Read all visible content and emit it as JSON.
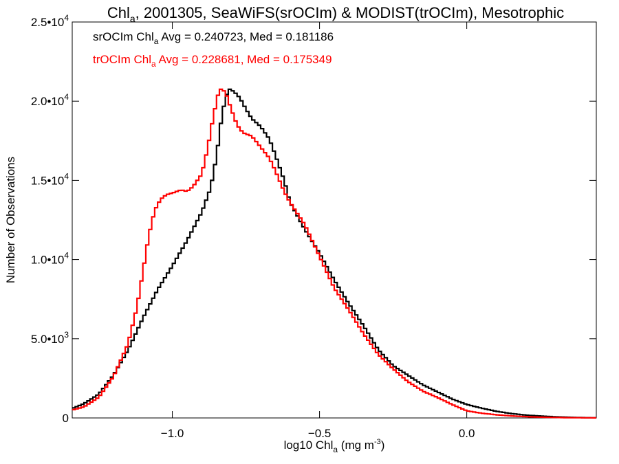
{
  "chart_data": {
    "type": "line",
    "title": {
      "pre": "Chl",
      "sub": "a",
      "post": ", 2001305, SeaWiFS(srOCIm) & MODIST(trOCIm), Mesotrophic"
    },
    "xlabel": {
      "pre": "log10 Chl",
      "sub": "a",
      "post": " (mg m",
      "sup": "-3",
      "end": ")"
    },
    "ylabel": "Number of Observations",
    "xlim": [
      -1.34,
      0.44
    ],
    "ylim": [
      0,
      25000
    ],
    "x_ticks": [
      {
        "value": -1.0,
        "label": "−1.0"
      },
      {
        "value": -0.5,
        "label": "−0.5"
      },
      {
        "value": 0.0,
        "label": "0.0"
      }
    ],
    "y_ticks": [
      {
        "value": 0,
        "mant": "0",
        "exp": ""
      },
      {
        "value": 5000,
        "mant": "5.0•10",
        "exp": "3"
      },
      {
        "value": 10000,
        "mant": "1.0•10",
        "exp": "4"
      },
      {
        "value": 15000,
        "mant": "1.5•10",
        "exp": "4"
      },
      {
        "value": 20000,
        "mant": "2.0•10",
        "exp": "4"
      },
      {
        "value": 25000,
        "mant": "2.5•10",
        "exp": "4"
      }
    ],
    "annotations": [
      {
        "pre": "srOCIm Chl",
        "sub": "a",
        "post": " Avg = 0.240723, Med = 0.181186",
        "color": "#000000"
      },
      {
        "pre": "trOCIm Chl",
        "sub": "a",
        "post": " Avg = 0.228681, Med = 0.175349",
        "color": "#ff0000"
      }
    ],
    "series": [
      {
        "color": "#000000",
        "points": [
          [
            -1.34,
            600
          ],
          [
            -1.3,
            900
          ],
          [
            -1.25,
            1500
          ],
          [
            -1.2,
            2700
          ],
          [
            -1.15,
            4300
          ],
          [
            -1.1,
            6300
          ],
          [
            -1.05,
            8100
          ],
          [
            -1.0,
            9600
          ],
          [
            -0.95,
            11200
          ],
          [
            -0.9,
            13000
          ],
          [
            -0.87,
            14500
          ],
          [
            -0.85,
            16500
          ],
          [
            -0.83,
            19300
          ],
          [
            -0.81,
            20800
          ],
          [
            -0.79,
            20600
          ],
          [
            -0.77,
            20200
          ],
          [
            -0.75,
            19500
          ],
          [
            -0.73,
            18900
          ],
          [
            -0.7,
            18400
          ],
          [
            -0.67,
            17600
          ],
          [
            -0.65,
            16600
          ],
          [
            -0.62,
            15000
          ],
          [
            -0.6,
            13600
          ],
          [
            -0.55,
            11900
          ],
          [
            -0.5,
            10400
          ],
          [
            -0.45,
            8700
          ],
          [
            -0.4,
            7200
          ],
          [
            -0.35,
            5800
          ],
          [
            -0.3,
            4300
          ],
          [
            -0.25,
            3300
          ],
          [
            -0.2,
            2700
          ],
          [
            -0.15,
            2100
          ],
          [
            -0.1,
            1650
          ],
          [
            -0.05,
            1200
          ],
          [
            0.0,
            850
          ],
          [
            0.05,
            620
          ],
          [
            0.1,
            420
          ],
          [
            0.15,
            280
          ],
          [
            0.2,
            180
          ],
          [
            0.25,
            120
          ],
          [
            0.3,
            70
          ],
          [
            0.35,
            40
          ],
          [
            0.4,
            20
          ],
          [
            0.44,
            10
          ]
        ]
      },
      {
        "color": "#ff0000",
        "points": [
          [
            -1.34,
            500
          ],
          [
            -1.3,
            700
          ],
          [
            -1.25,
            1300
          ],
          [
            -1.2,
            2600
          ],
          [
            -1.15,
            4700
          ],
          [
            -1.12,
            7000
          ],
          [
            -1.1,
            9200
          ],
          [
            -1.08,
            11500
          ],
          [
            -1.06,
            13100
          ],
          [
            -1.04,
            13800
          ],
          [
            -1.02,
            14100
          ],
          [
            -1.0,
            14200
          ],
          [
            -0.97,
            14400
          ],
          [
            -0.95,
            14300
          ],
          [
            -0.93,
            14600
          ],
          [
            -0.9,
            15400
          ],
          [
            -0.88,
            17000
          ],
          [
            -0.86,
            19100
          ],
          [
            -0.84,
            20800
          ],
          [
            -0.82,
            20600
          ],
          [
            -0.8,
            19500
          ],
          [
            -0.78,
            18500
          ],
          [
            -0.76,
            18000
          ],
          [
            -0.73,
            17800
          ],
          [
            -0.7,
            17100
          ],
          [
            -0.67,
            16400
          ],
          [
            -0.65,
            15600
          ],
          [
            -0.62,
            14300
          ],
          [
            -0.6,
            13600
          ],
          [
            -0.55,
            12200
          ],
          [
            -0.5,
            10200
          ],
          [
            -0.45,
            8200
          ],
          [
            -0.4,
            6800
          ],
          [
            -0.35,
            5300
          ],
          [
            -0.3,
            4000
          ],
          [
            -0.25,
            3100
          ],
          [
            -0.2,
            2300
          ],
          [
            -0.15,
            1700
          ],
          [
            -0.1,
            1300
          ],
          [
            -0.05,
            850
          ],
          [
            0.0,
            450
          ],
          [
            0.05,
            300
          ],
          [
            0.1,
            200
          ],
          [
            0.15,
            130
          ],
          [
            0.2,
            80
          ],
          [
            0.25,
            50
          ],
          [
            0.3,
            30
          ],
          [
            0.35,
            15
          ],
          [
            0.4,
            10
          ],
          [
            0.44,
            5
          ]
        ]
      }
    ]
  }
}
